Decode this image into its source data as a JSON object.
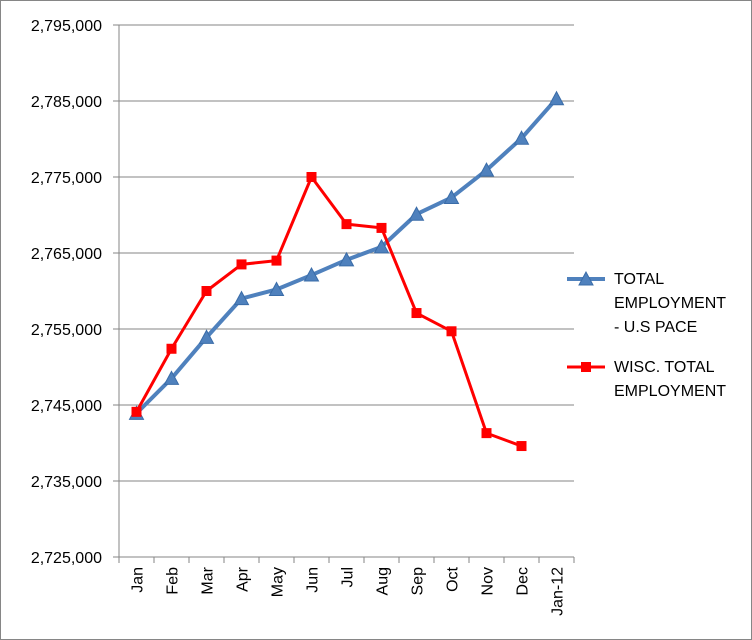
{
  "chart_data": {
    "type": "line",
    "title": "",
    "xlabel": "",
    "ylabel": "",
    "categories": [
      "Jan",
      "Feb",
      "Mar",
      "Apr",
      "May",
      "Jun",
      "Jul",
      "Aug",
      "Sep",
      "Oct",
      "Nov",
      "Dec",
      "Jan-12"
    ],
    "ylim": [
      2725000,
      2795000
    ],
    "y_ticks": [
      2725000,
      2735000,
      2745000,
      2755000,
      2765000,
      2775000,
      2785000,
      2795000
    ],
    "y_tick_labels": [
      "2,725,000",
      "2,735,000",
      "2,745,000",
      "2,755,000",
      "2,765,000",
      "2,775,000",
      "2,785,000",
      "2,795,000"
    ],
    "grid": "horizontal",
    "legend_position": "right",
    "series": [
      {
        "name": "TOTAL EMPLOYMENT - U.S PACE",
        "legend_lines": [
          "TOTAL",
          "EMPLOYMENT",
          "- U.S PACE"
        ],
        "color": "#4F81BD",
        "marker": "triangle",
        "values": [
          2743900,
          2748500,
          2753900,
          2759000,
          2760200,
          2762100,
          2764100,
          2765800,
          2770100,
          2772300,
          2775900,
          2780100,
          2785300
        ]
      },
      {
        "name": "WISC. TOTAL EMPLOYMENT",
        "legend_lines": [
          "WISC. TOTAL",
          "EMPLOYMENT"
        ],
        "color": "#FF0000",
        "marker": "square",
        "values": [
          2744100,
          2752400,
          2760000,
          2763500,
          2764000,
          2775000,
          2768800,
          2768300,
          2757100,
          2754700,
          2741300,
          2739600,
          null
        ]
      }
    ]
  }
}
